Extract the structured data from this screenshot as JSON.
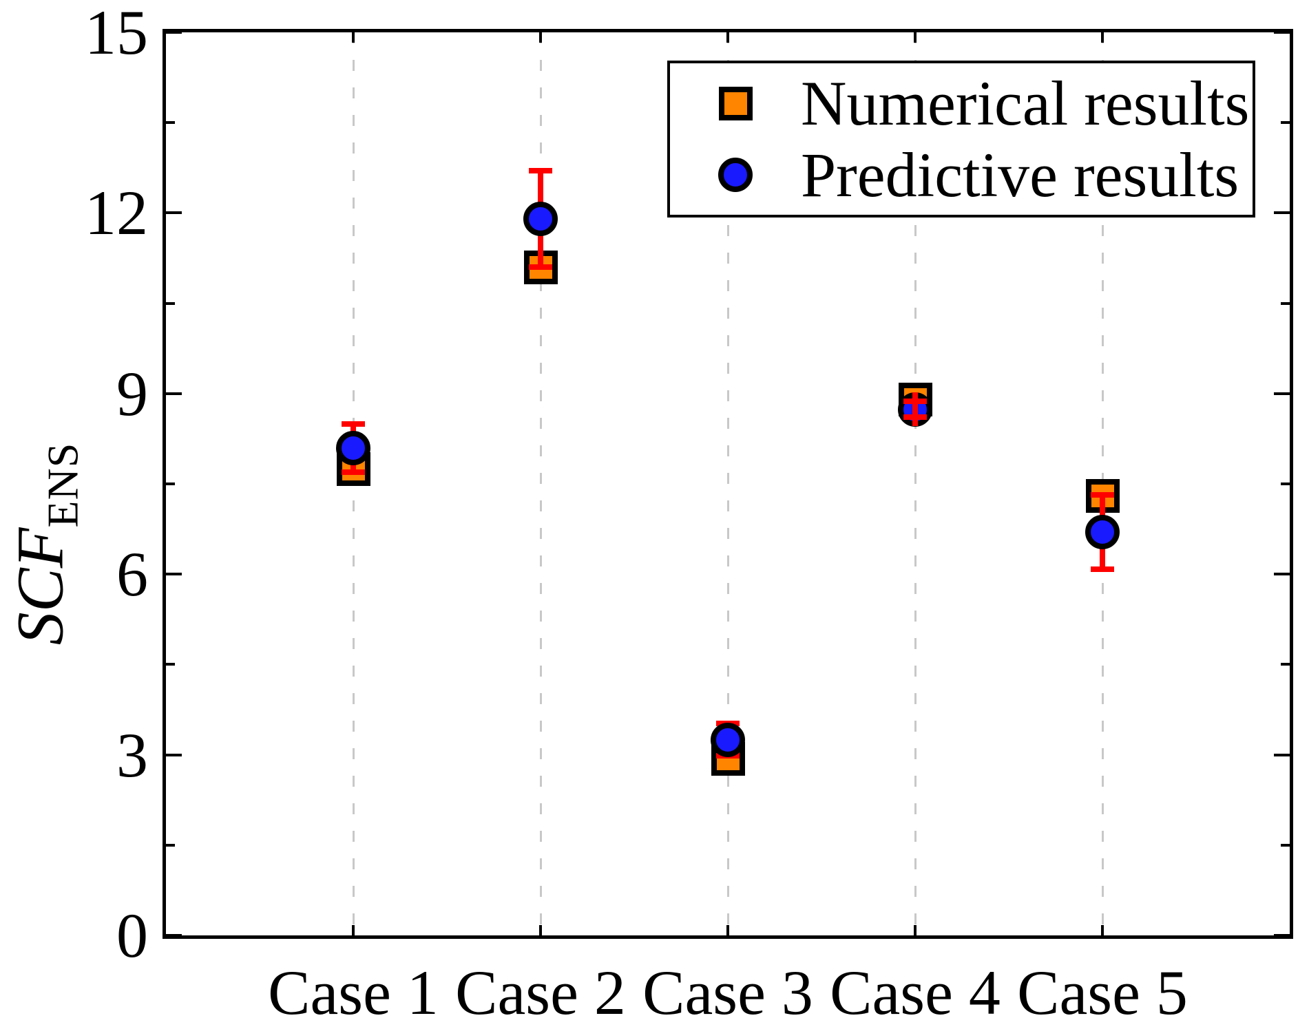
{
  "figure_title": "",
  "y_axis": {
    "title_main": "SCF",
    "title_sub": "ENS",
    "ticks": [
      0,
      3,
      6,
      9,
      12,
      15
    ],
    "minor_ticks": [
      1.5,
      4.5,
      7.5,
      10.5,
      13.5
    ],
    "lim": [
      0,
      15
    ]
  },
  "legend": {
    "items": [
      {
        "label": "Numerical results",
        "marker": "square"
      },
      {
        "label": "Predictive results",
        "marker": "circle"
      }
    ]
  },
  "colors": {
    "numerical": "#ff8400",
    "predictive": "#1a1aff",
    "marker_edge": "#000000",
    "error_bar": "#ff0000",
    "gridline": "#c8c8c8",
    "axis": "#000000"
  },
  "chart_data": {
    "type": "scatter",
    "categories": [
      "Case 1",
      "Case 2",
      "Case 3",
      "Case 4",
      "Case 5"
    ],
    "series": [
      {
        "name": "Numerical results",
        "marker": "square",
        "color": "#ff8400",
        "values": [
          7.75,
          11.1,
          2.93,
          8.9,
          7.3
        ]
      },
      {
        "name": "Predictive results",
        "marker": "circle",
        "color": "#1a1aff",
        "values": [
          8.1,
          11.9,
          3.25,
          8.74,
          6.7
        ],
        "error_bars": {
          "color": "#ff0000",
          "plus": [
            0.4,
            0.8,
            0.27,
            0.13,
            0.62
          ],
          "minus": [
            0.4,
            0.8,
            0.27,
            0.13,
            0.62
          ],
          "line_extra": [
            0,
            0,
            0,
            0.15,
            0
          ],
          "in_front": [
            false,
            false,
            false,
            true,
            false
          ]
        }
      }
    ],
    "title": "",
    "xlabel": "",
    "ylabel": "SCF_ENS",
    "ylim": [
      0,
      15
    ],
    "grid": "vertical-dashed-at-categories",
    "legend_position": "upper right"
  }
}
